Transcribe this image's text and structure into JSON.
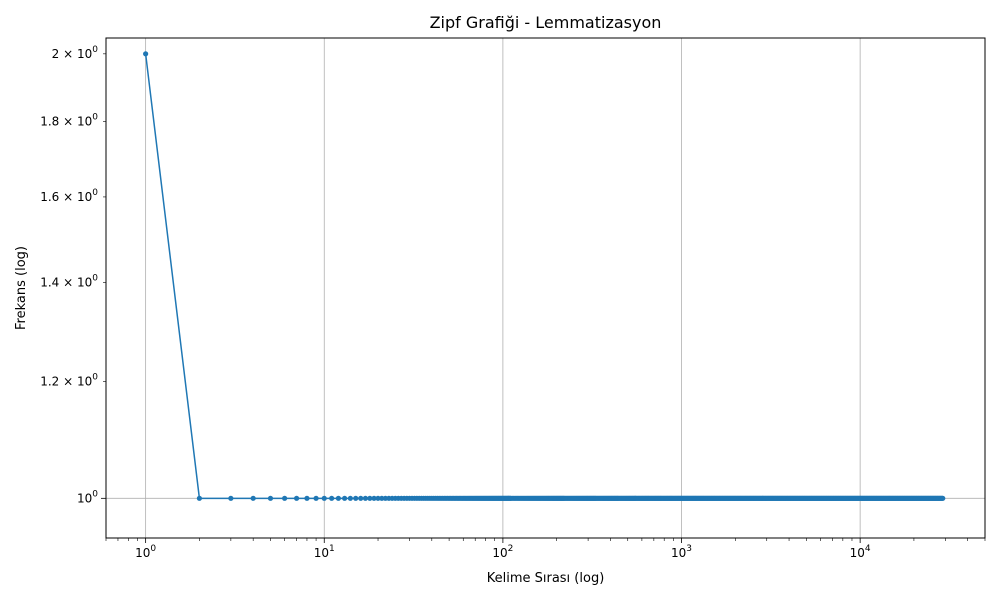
{
  "chart_data": {
    "type": "line",
    "title": "Zipf Grafiği - Lemmatizasyon",
    "xlabel": "Kelime Sırası (log)",
    "ylabel": "Frekans (log)",
    "xscale": "log",
    "yscale": "log",
    "xlim": [
      0.6,
      50000
    ],
    "ylim": [
      0.94,
      2.05
    ],
    "grid": true,
    "line_color": "#1f77b4",
    "marker": "circle",
    "x_ticks": [
      {
        "base": "10",
        "exp": "0",
        "value": 1
      },
      {
        "base": "10",
        "exp": "1",
        "value": 10
      },
      {
        "base": "10",
        "exp": "2",
        "value": 100
      },
      {
        "base": "10",
        "exp": "3",
        "value": 1000
      },
      {
        "base": "10",
        "exp": "4",
        "value": 10000
      }
    ],
    "y_ticks": [
      {
        "mant": "2 × 10",
        "exp": "0",
        "value": 2.0
      },
      {
        "mant": "1.8 × 10",
        "exp": "0",
        "value": 1.8
      },
      {
        "mant": "1.6 × 10",
        "exp": "0",
        "value": 1.6
      },
      {
        "mant": "1.4 × 10",
        "exp": "0",
        "value": 1.4
      },
      {
        "mant": "1.2 × 10",
        "exp": "0",
        "value": 1.2
      },
      {
        "mant": "10",
        "exp": "0",
        "value": 1.0
      }
    ],
    "series": [
      {
        "points": [
          [
            1,
            2
          ],
          [
            2,
            1
          ]
        ],
        "tail": {
          "y": 1,
          "x_from": 2,
          "x_to": 29000
        }
      }
    ]
  }
}
